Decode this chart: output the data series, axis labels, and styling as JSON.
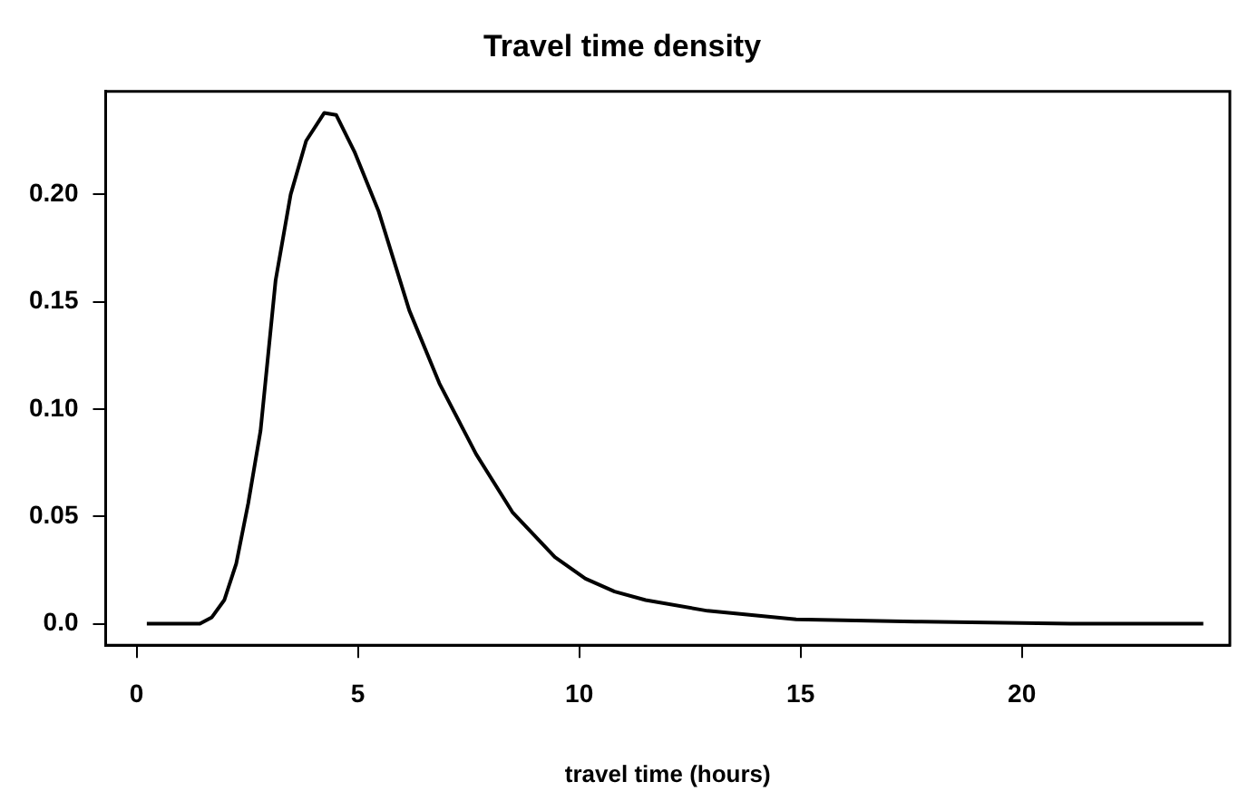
{
  "chart_data": {
    "type": "line",
    "title": "Travel time density",
    "xlabel": "travel time (hours)",
    "x": [
      0.23,
      1.43,
      1.7,
      1.98,
      2.25,
      2.52,
      2.8,
      3.14,
      3.48,
      3.83,
      4.24,
      4.51,
      4.92,
      5.47,
      6.16,
      6.84,
      7.67,
      8.49,
      9.45,
      10.14,
      10.8,
      11.5,
      12.9,
      14.9,
      17.6,
      21.1,
      24.1
    ],
    "series": [
      {
        "color": "#000000",
        "values": [
          0,
          0,
          0.003,
          0.011,
          0.028,
          0.056,
          0.09,
          0.16,
          0.2,
          0.225,
          0.238,
          0.237,
          0.22,
          0.192,
          0.146,
          0.112,
          0.079,
          0.052,
          0.031,
          0.021,
          0.015,
          0.011,
          0.006,
          0.002,
          0.001,
          0,
          0
        ]
      }
    ],
    "xlim": [
      -0.7,
      24.7
    ],
    "ylim": [
      -0.01,
      0.248
    ],
    "xticks": [
      0,
      5,
      10,
      15,
      20
    ],
    "yticks": [
      {
        "value": 0,
        "label": "0.0"
      },
      {
        "value": 0.05,
        "label": "0.05"
      },
      {
        "value": 0.1,
        "label": "0.10"
      },
      {
        "value": 0.15,
        "label": "0.15"
      },
      {
        "value": 0.2,
        "label": "0.20"
      }
    ],
    "grid": false,
    "legend": false,
    "marker": "none",
    "line_style": "solid"
  }
}
